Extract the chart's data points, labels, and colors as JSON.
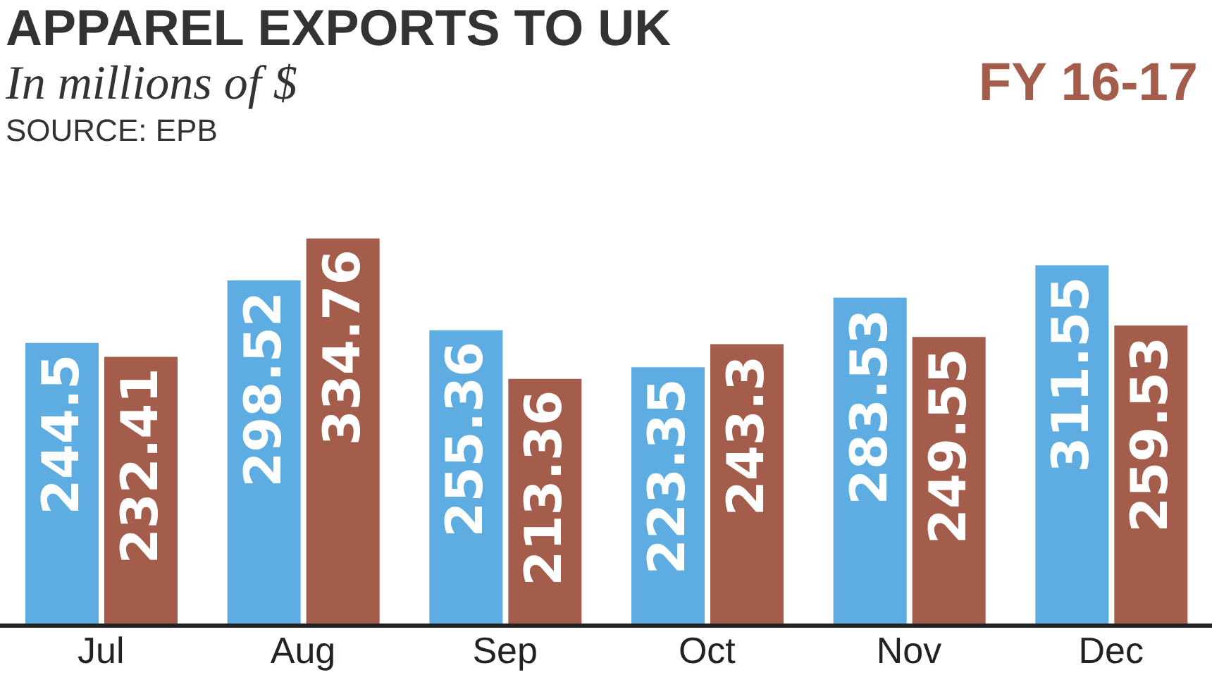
{
  "chart_data": {
    "type": "bar",
    "title": "APPAREL EXPORTS TO UK",
    "subtitle": "In millions of $",
    "annotations": [
      "SOURCE: EPB"
    ],
    "categories": [
      "Jul",
      "Aug",
      "Sep",
      "Oct",
      "Nov",
      "Dec"
    ],
    "series": [
      {
        "color": "#5dade2",
        "values": [
          244.5,
          298.52,
          255.36,
          223.35,
          283.53,
          311.55
        ]
      },
      {
        "name": "FY 16-17",
        "color": "#a45c4b",
        "values": [
          232.41,
          334.76,
          213.36,
          243.3,
          249.55,
          259.53
        ]
      }
    ],
    "data_labels": true,
    "legend": "top right",
    "grid": false,
    "tick_labels": "x"
  }
}
